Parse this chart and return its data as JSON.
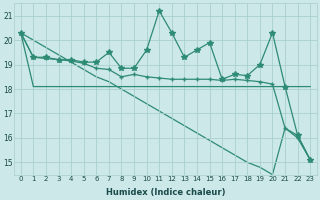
{
  "xlabel": "Humidex (Indice chaleur)",
  "x": [
    0,
    1,
    2,
    3,
    4,
    5,
    6,
    7,
    8,
    9,
    10,
    11,
    12,
    13,
    14,
    15,
    16,
    17,
    18,
    19,
    20,
    21,
    22,
    23
  ],
  "series_star": [
    20.3,
    19.3,
    19.3,
    19.2,
    19.2,
    19.1,
    19.1,
    19.5,
    18.85,
    18.85,
    19.6,
    21.2,
    20.3,
    19.3,
    19.6,
    19.9,
    18.4,
    18.6,
    18.55,
    19.0,
    20.3,
    18.1,
    16.1,
    15.1
  ],
  "series_plus": [
    20.3,
    19.3,
    19.25,
    19.2,
    19.15,
    19.05,
    18.85,
    18.8,
    18.5,
    18.6,
    18.5,
    18.45,
    18.4,
    18.4,
    18.4,
    18.4,
    18.35,
    18.4,
    18.35,
    18.3,
    18.2,
    16.4,
    16.0,
    15.1
  ],
  "series_flat": [
    20.3,
    18.1,
    18.1,
    18.1,
    18.1,
    18.1,
    18.1,
    18.1,
    18.1,
    18.1,
    18.1,
    18.1,
    18.1,
    18.1,
    18.1,
    18.1,
    18.1,
    18.1,
    18.1,
    18.1,
    18.1,
    18.1,
    18.1,
    18.1
  ],
  "series_diag": [
    20.3,
    20.0,
    19.7,
    19.4,
    19.1,
    18.8,
    18.5,
    18.3,
    18.0,
    17.7,
    17.4,
    17.1,
    16.8,
    16.5,
    16.2,
    15.9,
    15.6,
    15.3,
    15.0,
    14.8,
    14.5,
    16.4,
    16.1,
    15.1
  ],
  "line_color": "#2e8b74",
  "bg_color": "#cce8e8",
  "grid_color": "#aacece",
  "ylim": [
    14.5,
    21.5
  ],
  "yticks": [
    15,
    16,
    17,
    18,
    19,
    20,
    21
  ],
  "xticks": [
    0,
    1,
    2,
    3,
    4,
    5,
    6,
    7,
    8,
    9,
    10,
    11,
    12,
    13,
    14,
    15,
    16,
    17,
    18,
    19,
    20,
    21,
    22,
    23
  ]
}
